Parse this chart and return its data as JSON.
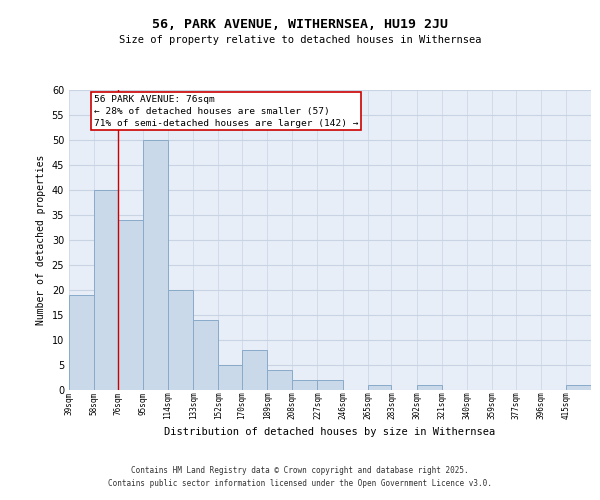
{
  "title": "56, PARK AVENUE, WITHERNSEA, HU19 2JU",
  "subtitle": "Size of property relative to detached houses in Withernsea",
  "xlabel": "Distribution of detached houses by size in Withernsea",
  "ylabel": "Number of detached properties",
  "bin_labels": [
    "39sqm",
    "58sqm",
    "76sqm",
    "95sqm",
    "114sqm",
    "133sqm",
    "152sqm",
    "170sqm",
    "189sqm",
    "208sqm",
    "227sqm",
    "246sqm",
    "265sqm",
    "283sqm",
    "302sqm",
    "321sqm",
    "340sqm",
    "359sqm",
    "377sqm",
    "396sqm",
    "415sqm"
  ],
  "bin_edges": [
    39,
    58,
    76,
    95,
    114,
    133,
    152,
    170,
    189,
    208,
    227,
    246,
    265,
    283,
    302,
    321,
    340,
    359,
    377,
    396,
    415
  ],
  "bar_heights": [
    19,
    40,
    34,
    50,
    20,
    14,
    5,
    8,
    4,
    2,
    2,
    0,
    1,
    0,
    1,
    0,
    0,
    0,
    0,
    0,
    1
  ],
  "bar_color": "#c9d9ea",
  "bar_edge_color": "#88aac8",
  "grid_color": "#c8d4e4",
  "bg_color": "#e8eef8",
  "property_line_x": 76,
  "property_line_color": "#cc0000",
  "annotation_text": "56 PARK AVENUE: 76sqm\n← 28% of detached houses are smaller (57)\n71% of semi-detached houses are larger (142) →",
  "annotation_box_color": "#ffffff",
  "annotation_box_edge": "#cc0000",
  "ylim": [
    0,
    60
  ],
  "yticks": [
    0,
    5,
    10,
    15,
    20,
    25,
    30,
    35,
    40,
    45,
    50,
    55,
    60
  ],
  "footer_line1": "Contains HM Land Registry data © Crown copyright and database right 2025.",
  "footer_line2": "Contains public sector information licensed under the Open Government Licence v3.0."
}
